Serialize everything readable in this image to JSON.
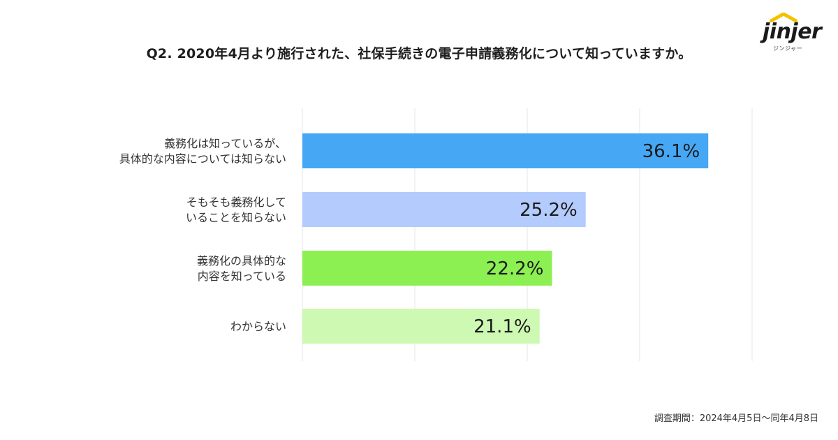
{
  "title": "Q2. 2020年4月より施行された、社保手続きの電子申請義務化について知っていますか。",
  "logo": {
    "word": "jinjer",
    "sub": "ジンジャー"
  },
  "footer": "調査期間：2024年4月5日〜同年4月8日",
  "chart_data": {
    "type": "bar",
    "orientation": "horizontal",
    "categories": [
      [
        "義務化は知っているが、",
        "具体的な内容については知らない"
      ],
      [
        "そもそも義務化して",
        "いることを知らない"
      ],
      [
        "義務化の具体的な",
        "内容を知っている"
      ],
      [
        "わからない"
      ]
    ],
    "values": [
      36.1,
      25.2,
      22.2,
      21.1
    ],
    "value_labels": [
      "36.1%",
      "25.2%",
      "22.2%",
      "21.1%"
    ],
    "colors": [
      "#46a7f5",
      "#b3cbfd",
      "#8cf052",
      "#cdf9b3"
    ],
    "xlim": [
      0,
      40
    ],
    "grid": true
  }
}
